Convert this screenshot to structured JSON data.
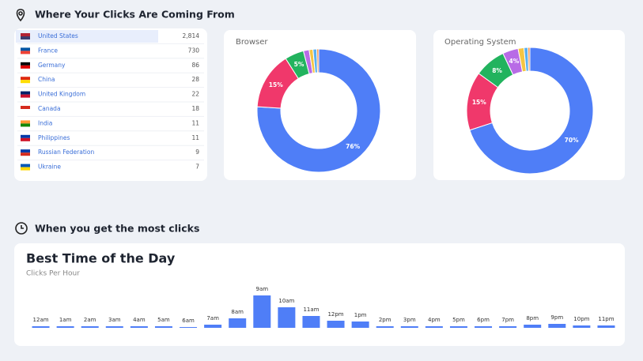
{
  "sections": [
    "Where Your Clicks Are Coming From",
    "When you get the most clicks"
  ],
  "countries": {
    "rows": [
      [
        "United States",
        "2,814"
      ],
      [
        "France",
        "730"
      ],
      [
        "Germany",
        "86"
      ],
      [
        "China",
        "28"
      ],
      [
        "United Kingdom",
        "22"
      ],
      [
        "Canada",
        "18"
      ],
      [
        "India",
        "11"
      ],
      [
        "Philippines",
        "11"
      ],
      [
        "Russian Federation",
        "9"
      ],
      [
        "Ukraine",
        "7"
      ]
    ]
  },
  "chart_data": [
    {
      "type": "pie",
      "title": "Browser",
      "values": [
        76,
        15,
        5,
        1.5,
        1,
        1,
        0.5
      ],
      "value_labels": [
        "76%",
        "15%",
        "5%",
        null,
        null,
        null,
        null
      ],
      "colors": [
        "#4f7ef7",
        "#f0386b",
        "#22b35e",
        "#b86be6",
        "#f5c542",
        "#5ab0f0",
        "#f08a3c"
      ]
    },
    {
      "type": "pie",
      "title": "Operating System",
      "values": [
        70,
        15,
        8,
        4,
        1.5,
        1,
        0.5
      ],
      "value_labels": [
        "70%",
        "15%",
        "8%",
        "4%",
        null,
        null,
        null
      ],
      "colors": [
        "#4f7ef7",
        "#f0386b",
        "#22b35e",
        "#b86be6",
        "#f5c542",
        "#5ab0f0",
        "#f08a3c"
      ]
    },
    {
      "type": "bar",
      "title": "Best Time of the Day",
      "subtitle": "Clicks Per Hour",
      "categories": [
        "12am",
        "1am",
        "2am",
        "3am",
        "4am",
        "5am",
        "6am",
        "7am",
        "8am",
        "9am",
        "10am",
        "11am",
        "12pm",
        "1pm",
        "2pm",
        "3pm",
        "4pm",
        "5pm",
        "6pm",
        "7pm",
        "8pm",
        "9pm",
        "10pm",
        "11pm"
      ],
      "values": [
        2,
        2,
        2,
        2,
        2,
        2,
        1,
        4,
        12,
        41,
        26,
        15,
        9,
        8,
        2,
        2,
        2,
        2,
        2,
        2,
        4,
        5,
        3,
        3
      ],
      "color": "#4f7ef7"
    }
  ]
}
